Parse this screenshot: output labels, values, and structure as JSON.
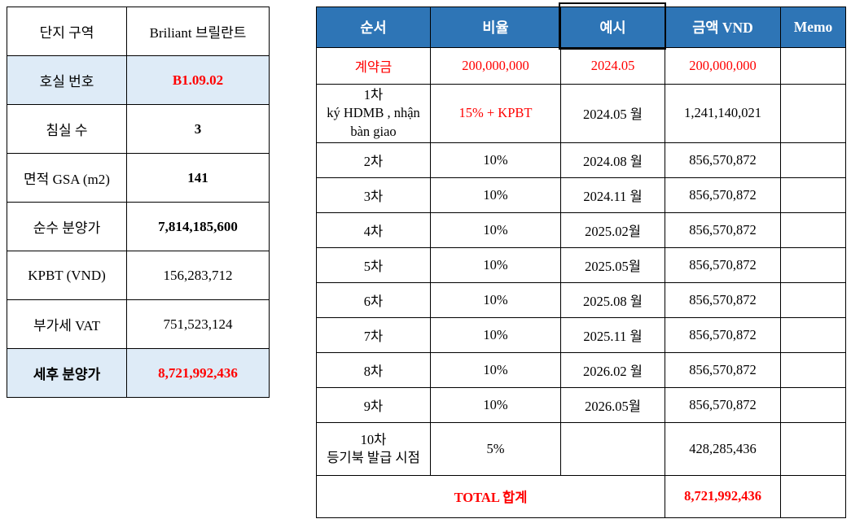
{
  "colors": {
    "header_blue": "#2E75B6",
    "highlight_blue": "#DEEBF7",
    "accent_red": "#FF0000",
    "border_black": "#000000",
    "background": "#FFFFFF"
  },
  "unit_table": {
    "rows": [
      {
        "label": "단지 구역",
        "value": "Briliant 브릴란트"
      },
      {
        "label": "호실 번호",
        "value": "B1.09.02"
      },
      {
        "label": "침실 수",
        "value": "3"
      },
      {
        "label": "면적 GSA (m2)",
        "value": "141"
      },
      {
        "label": "순수 분양가",
        "value": "7,814,185,600"
      },
      {
        "label": "KPBT (VND)",
        "value": "156,283,712"
      },
      {
        "label": "부가세 VAT",
        "value": "751,523,124"
      },
      {
        "label": "세후 분양가",
        "value": "8,721,992,436"
      }
    ]
  },
  "schedule_table": {
    "headers": {
      "order": "순서",
      "ratio": "비율",
      "example": "예시",
      "amount": "금액 VND",
      "memo": "Memo"
    },
    "rows": [
      {
        "order": "계약금",
        "ratio": "200,000,000",
        "example": "2024.05",
        "amount": "200,000,000",
        "memo": ""
      },
      {
        "order": "1차\nký HDMB , nhận\nbàn giao",
        "ratio": "15% + KPBT",
        "example": "2024.05 월",
        "amount": "1,241,140,021",
        "memo": ""
      },
      {
        "order": "2차",
        "ratio": "10%",
        "example": "2024.08 월",
        "amount": "856,570,872",
        "memo": ""
      },
      {
        "order": "3차",
        "ratio": "10%",
        "example": "2024.11 월",
        "amount": "856,570,872",
        "memo": ""
      },
      {
        "order": "4차",
        "ratio": "10%",
        "example": "2025.02월",
        "amount": "856,570,872",
        "memo": ""
      },
      {
        "order": "5차",
        "ratio": "10%",
        "example": "2025.05월",
        "amount": "856,570,872",
        "memo": ""
      },
      {
        "order": "6차",
        "ratio": "10%",
        "example": "2025.08 월",
        "amount": "856,570,872",
        "memo": ""
      },
      {
        "order": "7차",
        "ratio": "10%",
        "example": "2025.11 월",
        "amount": "856,570,872",
        "memo": ""
      },
      {
        "order": "8차",
        "ratio": "10%",
        "example": "2026.02 월",
        "amount": "856,570,872",
        "memo": ""
      },
      {
        "order": "9차",
        "ratio": "10%",
        "example": "2026.05월",
        "amount": "856,570,872",
        "memo": ""
      },
      {
        "order": "10차\n등기북 발급 시점",
        "ratio": "5%",
        "example": "",
        "amount": "428,285,436",
        "memo": ""
      }
    ],
    "total": {
      "label": "TOTAL 합계",
      "amount": "8,721,992,436",
      "memo": ""
    }
  }
}
